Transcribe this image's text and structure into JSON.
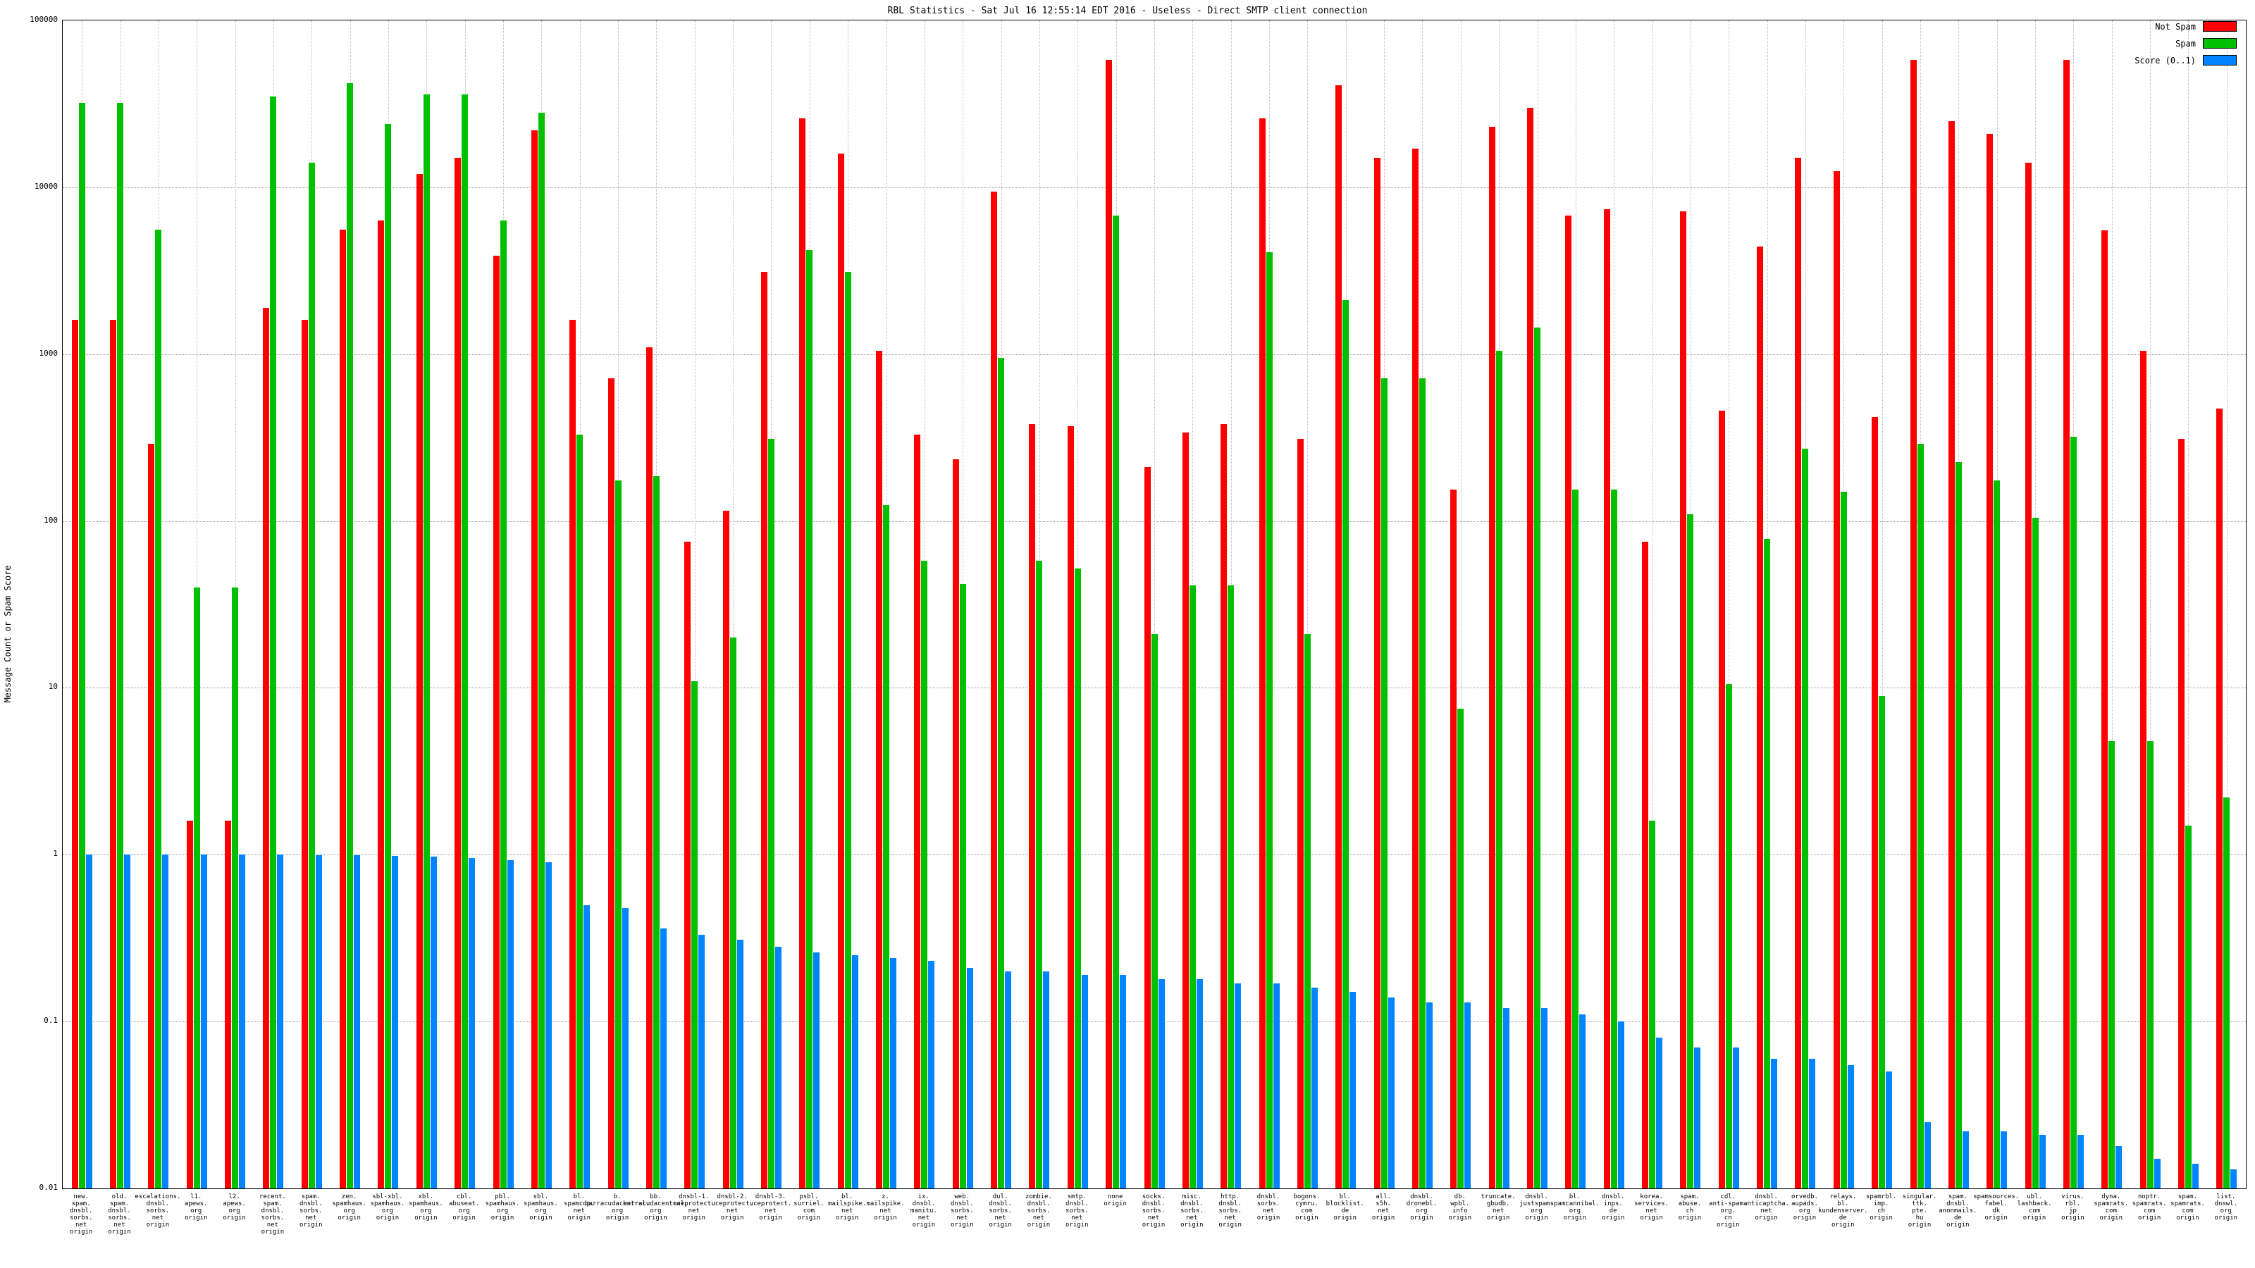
{
  "header": {
    "title": "RBL Statistics - Sat Jul 16 12:55:14 EDT 2016 - Useless - Direct SMTP client connection"
  },
  "axes": {
    "ylabel": "Message Count or Spam Score",
    "tick_suffix": "origin"
  },
  "legend": {
    "items": [
      {
        "label": "Not Spam",
        "color": "#ff0000"
      },
      {
        "label": "Spam",
        "color": "#00c000"
      },
      {
        "label": "Score (0..1)",
        "color": "#0084ff"
      }
    ]
  },
  "chart_data": {
    "type": "bar",
    "title": "RBL Statistics - Sat Jul 16 12:55:14 EDT 2016 - Useless - Direct SMTP client connection",
    "xlabel": "",
    "ylabel": "Message Count or Spam Score",
    "y_scale": "log",
    "ylim": [
      0.01,
      100000
    ],
    "yticks": [
      100000,
      10000,
      1000,
      100,
      10,
      1,
      0.1,
      0.01
    ],
    "grid": true,
    "legend_position": "top-right",
    "categories": [
      "new.spam.dnsbl.sorbs.net",
      "old.spam.dnsbl.sorbs.net",
      "escalations.dnsbl.sorbs.net",
      "l1.apews.org",
      "l2.apews.org",
      "recent.spam.dnsbl.sorbs.net",
      "spam.dnsbl.sorbs.net",
      "zen.spamhaus.org",
      "sbl-xbl.spamhaus.org",
      "xbl.spamhaus.org",
      "cbl.abuseat.org",
      "pbl.spamhaus.org",
      "sbl.spamhaus.org",
      "bl.spamcop.net",
      "b.barracudacentral.org",
      "bb.barracudacentral.org",
      "dnsbl-1.uceprotect.net",
      "dnsbl-2.uceprotect.net",
      "dnsbl-3.uceprotect.net",
      "psbl.surriel.com",
      "bl.mailspike.net",
      "z.mailspike.net",
      "ix.dnsbl.manitu.net",
      "web.dnsbl.sorbs.net",
      "dul.dnsbl.sorbs.net",
      "zombie.dnsbl.sorbs.net",
      "smtp.dnsbl.sorbs.net",
      "none",
      "socks.dnsbl.sorbs.net",
      "misc.dnsbl.sorbs.net",
      "http.dnsbl.sorbs.net",
      "dnsbl.sorbs.net",
      "bogons.cymru.com",
      "bl.blocklist.de",
      "all.s5h.net",
      "dnsbl.dronebl.org",
      "db.wpbl.info",
      "truncate.gbudb.net",
      "dnsbl.justspam.org",
      "bl.spamcannibal.org",
      "dnsbl.inps.de",
      "korea.services.net",
      "spam.abuse.ch",
      "cdl.anti-spam.org.cn",
      "dnsbl.anticaptcha.net",
      "orvedb.aupads.org",
      "relays.bl.kundenserver.de",
      "spamrbl.imp.ch",
      "singular.ttk.pte.hu",
      "spam.dnsbl.anonmails.de",
      "spamsources.fabel.dk",
      "ubl.lashback.com",
      "virus.rbl.jp",
      "dyna.spamrats.com",
      "noptr.spamrats.com",
      "spam.spamrats.com",
      "list.dnswl.org"
    ],
    "series": [
      {
        "name": "Not Spam",
        "color": "#ff0000",
        "values": [
          1600,
          1600,
          290,
          1.6,
          1.6,
          1900,
          1600,
          5600,
          6300,
          12000,
          15000,
          3900,
          22000,
          1600,
          720,
          1100,
          75,
          115,
          3100,
          26000,
          16000,
          1050,
          330,
          235,
          9400,
          380,
          370,
          58000,
          210,
          340,
          380,
          26000,
          310,
          41000,
          15000,
          17000,
          155,
          23000,
          30000,
          6800,
          7400,
          75,
          7200,
          460,
          4400,
          15000,
          12500,
          420,
          58000,
          25000,
          21000,
          14000,
          58000,
          5500,
          1050,
          310,
          470
        ]
      },
      {
        "name": "Spam",
        "color": "#00c000",
        "values": [
          32000,
          32000,
          5600,
          40,
          40,
          35000,
          14000,
          42000,
          24000,
          36000,
          36000,
          6300,
          28000,
          330,
          175,
          185,
          11,
          20,
          310,
          4200,
          3100,
          125,
          58,
          42,
          950,
          58,
          52,
          6800,
          21,
          41,
          41,
          4100,
          21,
          2100,
          720,
          720,
          7.5,
          1050,
          1450,
          155,
          155,
          1.6,
          110,
          10.5,
          78,
          270,
          150,
          8.9,
          290,
          225,
          175,
          105,
          320,
          4.8,
          4.8,
          1.5,
          2.2
        ]
      },
      {
        "name": "Score (0..1)",
        "color": "#0084ff",
        "values": [
          1.0,
          1.0,
          1.0,
          1.0,
          1.0,
          1.0,
          0.99,
          0.99,
          0.98,
          0.97,
          0.96,
          0.93,
          0.9,
          0.5,
          0.48,
          0.36,
          0.33,
          0.31,
          0.28,
          0.26,
          0.25,
          0.24,
          0.23,
          0.21,
          0.2,
          0.2,
          0.19,
          0.19,
          0.18,
          0.18,
          0.17,
          0.17,
          0.16,
          0.15,
          0.14,
          0.13,
          0.13,
          0.12,
          0.12,
          0.11,
          0.1,
          0.08,
          0.07,
          0.07,
          0.06,
          0.06,
          0.055,
          0.05,
          0.025,
          0.022,
          0.022,
          0.021,
          0.021,
          0.018,
          0.015,
          0.014,
          0.013
        ]
      }
    ]
  }
}
